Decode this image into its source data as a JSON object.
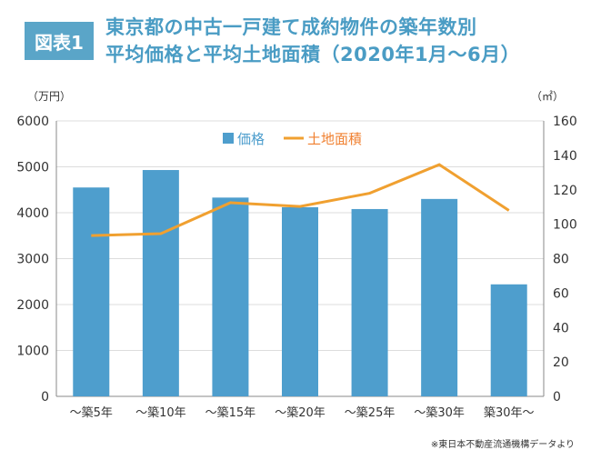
{
  "header": {
    "badge": "図表1",
    "title_line1": "東京都の中古一戸建て成約物件の築年数別",
    "title_line2": "平均価格と平均土地面積（2020年1月〜6月）"
  },
  "units": {
    "left": "（万円）",
    "right": "（㎡）"
  },
  "note": "※東日本不動産流通機構データより",
  "chart_data": {
    "type": "bar+line",
    "categories": [
      "〜築5年",
      "〜築10年",
      "〜築15年",
      "〜築20年",
      "〜築25年",
      "〜築30年",
      "築30年〜"
    ],
    "series": [
      {
        "name": "価格",
        "type": "bar",
        "axis": "left",
        "color": "#4e9ecd",
        "values": [
          4550,
          4930,
          4330,
          4120,
          4080,
          4300,
          2440
        ]
      },
      {
        "name": "土地面積",
        "type": "line",
        "axis": "right",
        "color": "#f0a030",
        "values": [
          93.4,
          94.5,
          112.5,
          110.3,
          118,
          134.6,
          108
        ]
      }
    ],
    "y_left": {
      "min": 0,
      "max": 6000,
      "ticks": [
        0,
        1000,
        2000,
        3000,
        4000,
        5000,
        6000
      ]
    },
    "y_right": {
      "min": 0,
      "max": 160,
      "ticks": [
        0,
        20,
        40,
        60,
        80,
        100,
        120,
        140,
        160
      ]
    },
    "grid": true,
    "legend": "top-center",
    "legend_colors": {
      "価格": "#4e9ecd",
      "土地面積": "#f08030"
    }
  }
}
